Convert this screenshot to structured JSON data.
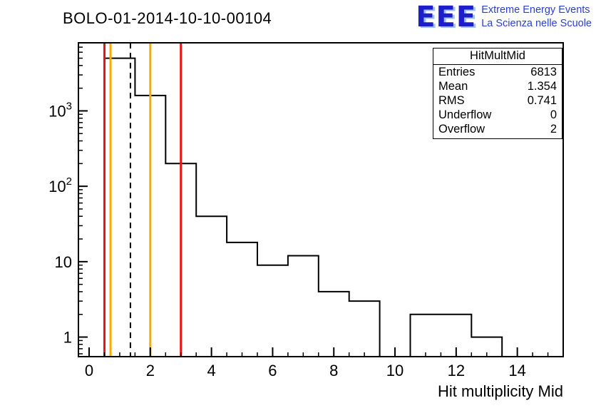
{
  "header": {
    "title": "BOLO-01-2014-10-10-00104",
    "logo": {
      "acronym": "EEE",
      "line1": "Extreme Energy Events",
      "line2": "La Scienza nelle Scuole",
      "color": "#1d1dcb"
    }
  },
  "stats_box": {
    "title": "HitMultMid",
    "rows": [
      {
        "label": "Entries",
        "value": "6813"
      },
      {
        "label": "Mean",
        "value": "1.354"
      },
      {
        "label": "RMS",
        "value": "0.741"
      },
      {
        "label": "Underflow",
        "value": "0"
      },
      {
        "label": "Overflow",
        "value": "2"
      }
    ]
  },
  "chart_data": {
    "type": "histogram-step",
    "title": "BOLO-01-2014-10-10-00104",
    "xlabel": "Hit multiplicity Mid",
    "ylabel": "",
    "y_scale": "log",
    "xlim": [
      -0.35,
      15.5
    ],
    "ylim": [
      0.55,
      8000
    ],
    "x_major_ticks": [
      0,
      2,
      4,
      6,
      8,
      10,
      12,
      14
    ],
    "x_minor_step": 0.5,
    "y_major_ticks": [
      1,
      10,
      100,
      1000
    ],
    "grid": "off",
    "line_color": "#000000",
    "bins": [
      {
        "x1": 0.5,
        "x2": 1.5,
        "count": 5000
      },
      {
        "x1": 1.5,
        "x2": 2.5,
        "count": 1600
      },
      {
        "x1": 2.5,
        "x2": 3.5,
        "count": 200
      },
      {
        "x1": 3.5,
        "x2": 4.5,
        "count": 40
      },
      {
        "x1": 4.5,
        "x2": 5.5,
        "count": 18
      },
      {
        "x1": 5.5,
        "x2": 6.5,
        "count": 9
      },
      {
        "x1": 6.5,
        "x2": 7.5,
        "count": 12
      },
      {
        "x1": 7.5,
        "x2": 8.5,
        "count": 4
      },
      {
        "x1": 8.5,
        "x2": 9.5,
        "count": 3
      },
      {
        "x1": 9.5,
        "x2": 10.5,
        "count": 0
      },
      {
        "x1": 10.5,
        "x2": 11.5,
        "count": 2
      },
      {
        "x1": 11.5,
        "x2": 12.5,
        "count": 2
      },
      {
        "x1": 12.5,
        "x2": 13.5,
        "count": 1
      },
      {
        "x1": 13.5,
        "x2": 14.5,
        "count": 0
      }
    ],
    "vlines": [
      {
        "x": 0.5,
        "color": "#ee1111",
        "dash": false,
        "width": 3
      },
      {
        "x": 0.7,
        "color": "#ffaa00",
        "dash": false,
        "width": 3
      },
      {
        "x": 1.35,
        "color": "#000000",
        "dash": true,
        "width": 2
      },
      {
        "x": 2.0,
        "color": "#ffaa00",
        "dash": false,
        "width": 3
      },
      {
        "x": 3.0,
        "color": "#ee1111",
        "dash": false,
        "width": 3
      }
    ]
  }
}
